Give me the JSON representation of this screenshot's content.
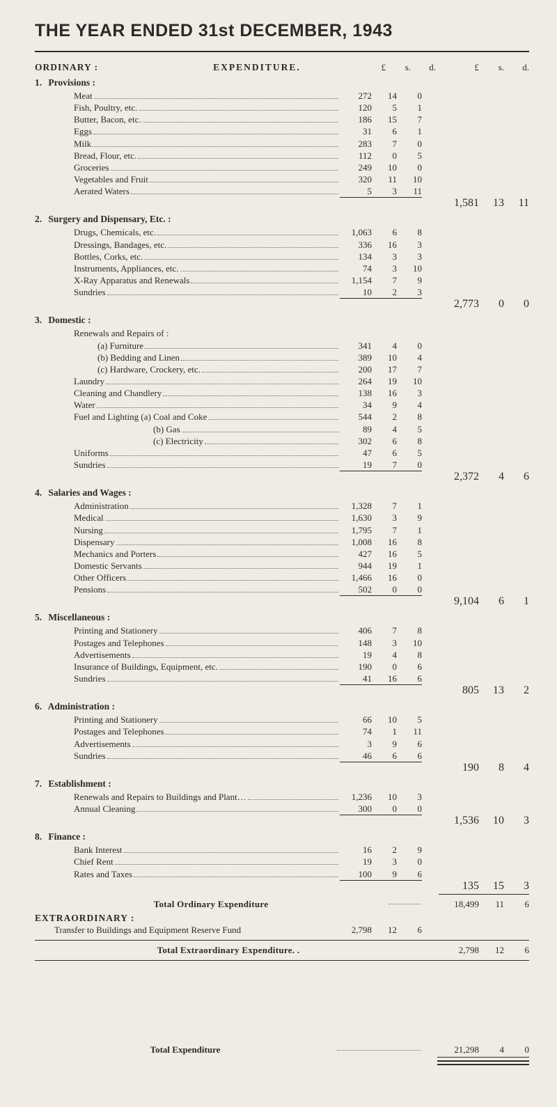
{
  "title": "THE YEAR ENDED 31st DECEMBER, 1943",
  "header": {
    "ordinary": "ORDINARY :",
    "expenditure": "EXPENDITURE.",
    "L": "£",
    "s": "s.",
    "d": "d."
  },
  "sections": [
    {
      "num": "1.",
      "title": "Provisions :",
      "items": [
        {
          "label": "Meat",
          "L": "272",
          "s": "14",
          "d": "0"
        },
        {
          "label": "Fish, Poultry, etc.",
          "L": "120",
          "s": "5",
          "d": "1"
        },
        {
          "label": "Butter, Bacon, etc.",
          "L": "186",
          "s": "15",
          "d": "7"
        },
        {
          "label": "Eggs",
          "L": "31",
          "s": "6",
          "d": "1"
        },
        {
          "label": "Milk",
          "L": "283",
          "s": "7",
          "d": "0"
        },
        {
          "label": "Bread, Flour, etc.",
          "L": "112",
          "s": "0",
          "d": "5"
        },
        {
          "label": "Groceries",
          "L": "249",
          "s": "10",
          "d": "0"
        },
        {
          "label": "Vegetables and Fruit",
          "L": "320",
          "s": "11",
          "d": "10"
        },
        {
          "label": "Aerated Waters",
          "L": "5",
          "s": "3",
          "d": "11"
        }
      ],
      "subtotal": {
        "L": "1,581",
        "s": "13",
        "d": "11"
      }
    },
    {
      "num": "2.",
      "title": "Surgery and Dispensary, Etc. :",
      "items": [
        {
          "label": "Drugs, Chemicals, etc.",
          "L": "1,063",
          "s": "6",
          "d": "8"
        },
        {
          "label": "Dressings, Bandages, etc.",
          "L": "336",
          "s": "16",
          "d": "3"
        },
        {
          "label": "Bottles, Corks, etc.",
          "L": "134",
          "s": "3",
          "d": "3"
        },
        {
          "label": "Instruments, Appliances, etc.",
          "L": "74",
          "s": "3",
          "d": "10"
        },
        {
          "label": "X-Ray Apparatus and Renewals",
          "L": "1,154",
          "s": "7",
          "d": "9"
        },
        {
          "label": "Sundries",
          "L": "10",
          "s": "2",
          "d": "3"
        }
      ],
      "subtotal": {
        "L": "2,773",
        "s": "0",
        "d": "0"
      }
    },
    {
      "num": "3.",
      "title": "Domestic :",
      "ritems_label": "Renewals and Repairs of :",
      "items": [
        {
          "label": "(a) Furniture",
          "sub": true,
          "L": "341",
          "s": "4",
          "d": "0"
        },
        {
          "label": "(b) Bedding and Linen",
          "sub": true,
          "L": "389",
          "s": "10",
          "d": "4"
        },
        {
          "label": "(c) Hardware, Crockery, etc.",
          "sub": true,
          "L": "200",
          "s": "17",
          "d": "7"
        },
        {
          "label": "Laundry",
          "L": "264",
          "s": "19",
          "d": "10"
        },
        {
          "label": "Cleaning and Chandlery",
          "L": "138",
          "s": "16",
          "d": "3"
        },
        {
          "label": "Water",
          "L": "34",
          "s": "9",
          "d": "4"
        },
        {
          "label": "Fuel and Lighting (a) Coal and Coke",
          "L": "544",
          "s": "2",
          "d": "8"
        },
        {
          "label": "(b) Gas",
          "sub": true,
          "deepsub": true,
          "L": "89",
          "s": "4",
          "d": "5"
        },
        {
          "label": "(c) Electricity",
          "sub": true,
          "deepsub": true,
          "L": "302",
          "s": "6",
          "d": "8"
        },
        {
          "label": "Uniforms",
          "L": "47",
          "s": "6",
          "d": "5"
        },
        {
          "label": "Sundries",
          "L": "19",
          "s": "7",
          "d": "0"
        }
      ],
      "subtotal": {
        "L": "2,372",
        "s": "4",
        "d": "6"
      }
    },
    {
      "num": "4.",
      "title": "Salaries and Wages :",
      "items": [
        {
          "label": "Administration",
          "L": "1,328",
          "s": "7",
          "d": "1"
        },
        {
          "label": "Medical",
          "L": "1,630",
          "s": "3",
          "d": "9"
        },
        {
          "label": "Nursing",
          "L": "1,795",
          "s": "7",
          "d": "1"
        },
        {
          "label": "Dispensary",
          "L": "1,008",
          "s": "16",
          "d": "8"
        },
        {
          "label": "Mechanics and Porters",
          "L": "427",
          "s": "16",
          "d": "5"
        },
        {
          "label": "Domestic Servants",
          "L": "944",
          "s": "19",
          "d": "1"
        },
        {
          "label": "Other Officers",
          "L": "1,466",
          "s": "16",
          "d": "0"
        },
        {
          "label": "Pensions",
          "L": "502",
          "s": "0",
          "d": "0"
        }
      ],
      "subtotal": {
        "L": "9,104",
        "s": "6",
        "d": "1"
      }
    },
    {
      "num": "5.",
      "title": "Miscellaneous :",
      "items": [
        {
          "label": "Printing and Stationery",
          "L": "406",
          "s": "7",
          "d": "8"
        },
        {
          "label": "Postages and Telephones",
          "L": "148",
          "s": "3",
          "d": "10"
        },
        {
          "label": "Advertisements",
          "L": "19",
          "s": "4",
          "d": "8"
        },
        {
          "label": "Insurance of Buildings, Equipment, etc.",
          "L": "190",
          "s": "0",
          "d": "6"
        },
        {
          "label": "Sundries",
          "L": "41",
          "s": "16",
          "d": "6"
        }
      ],
      "subtotal": {
        "L": "805",
        "s": "13",
        "d": "2"
      }
    },
    {
      "num": "6.",
      "title": "Administration :",
      "items": [
        {
          "label": "Printing and Stationery",
          "L": "66",
          "s": "10",
          "d": "5"
        },
        {
          "label": "Postages and Telephones",
          "L": "74",
          "s": "1",
          "d": "11"
        },
        {
          "label": "Advertisements",
          "L": "3",
          "s": "9",
          "d": "6"
        },
        {
          "label": "Sundries",
          "L": "46",
          "s": "6",
          "d": "6"
        }
      ],
      "subtotal": {
        "L": "190",
        "s": "8",
        "d": "4"
      }
    },
    {
      "num": "7.",
      "title": "Establishment :",
      "items": [
        {
          "label": "Renewals and Repairs to Buildings and Plant…",
          "L": "1,236",
          "s": "10",
          "d": "3"
        },
        {
          "label": "Annual Cleaning",
          "L": "300",
          "s": "0",
          "d": "0"
        }
      ],
      "subtotal": {
        "L": "1,536",
        "s": "10",
        "d": "3"
      }
    },
    {
      "num": "8.",
      "title": "Finance :",
      "items": [
        {
          "label": "Bank Interest",
          "L": "16",
          "s": "2",
          "d": "9"
        },
        {
          "label": "Chief Rent",
          "L": "19",
          "s": "3",
          "d": "0"
        },
        {
          "label": "Rates and Taxes",
          "L": "100",
          "s": "9",
          "d": "6"
        }
      ],
      "subtotal": {
        "L": "135",
        "s": "15",
        "d": "3"
      }
    }
  ],
  "totals": {
    "ordinary_label": "Total Ordinary Expenditure",
    "ordinary": {
      "L": "18,499",
      "s": "11",
      "d": "6"
    },
    "extra_head": "EXTRAORDINARY :",
    "transfer_label": "Transfer to Buildings and Equipment Reserve Fund",
    "transfer": {
      "L": "2,798",
      "s": "12",
      "d": "6"
    },
    "extra_label": "Total Extraordinary Expenditure. .",
    "extra": {
      "L": "2,798",
      "s": "12",
      "d": "6"
    },
    "grand_label": "Total Expenditure",
    "grand": {
      "L": "21,298",
      "s": "4",
      "d": "0"
    }
  }
}
